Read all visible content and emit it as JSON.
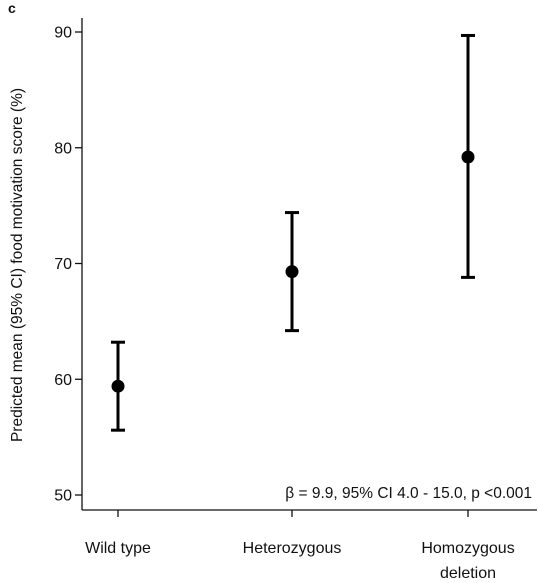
{
  "panel_label": "c",
  "chart_data": {
    "type": "scatter",
    "title": "",
    "xlabel": "",
    "ylabel": "Predicted mean (95% CI) food motivation score (%)",
    "ylim": [
      50,
      90
    ],
    "yticks": [
      50,
      60,
      70,
      80,
      90
    ],
    "grid": false,
    "categories": [
      [
        "Wild type"
      ],
      [
        "Heterozygous"
      ],
      [
        "Homozygous",
        "deletion"
      ]
    ],
    "values": [
      59.4,
      69.3,
      79.2
    ],
    "ci_lower": [
      55.6,
      64.2,
      68.8
    ],
    "ci_upper": [
      63.2,
      74.4,
      89.7
    ],
    "annotation": "β = 9.9, 95% CI 4.0 - 15.0, p <0.001",
    "colors": {
      "marker": "#000000",
      "axis": "#111111"
    }
  }
}
